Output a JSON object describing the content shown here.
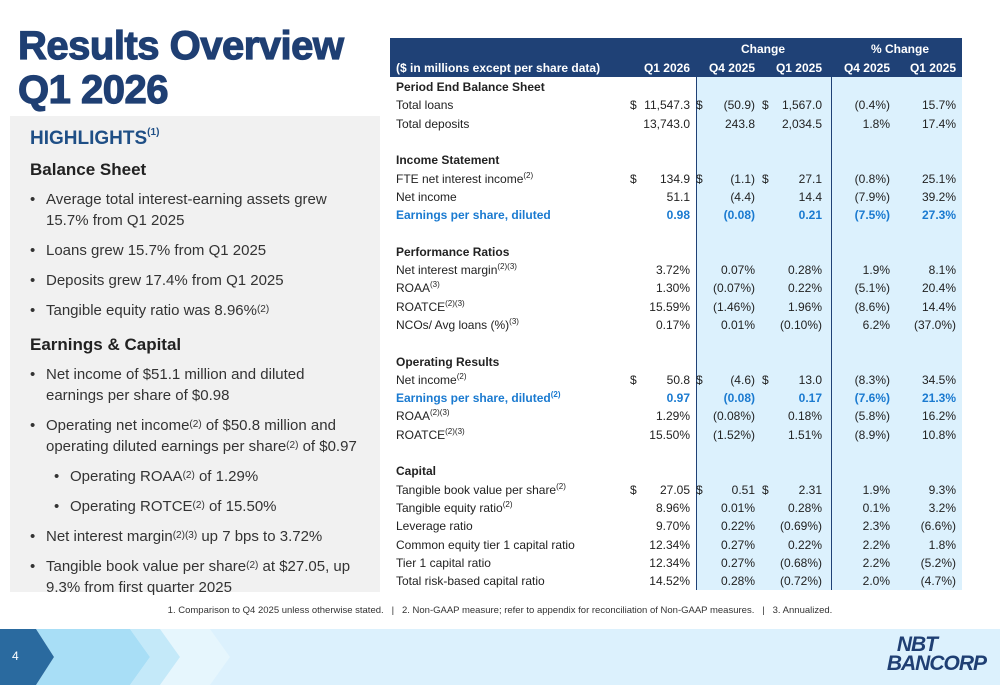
{
  "title": {
    "line1": "Results Overview",
    "line2": "Q1 2026"
  },
  "highlights": {
    "heading": "HIGHLIGHTS",
    "heading_sup": "(1)",
    "balance_heading": "Balance Sheet",
    "balance_items": [
      {
        "text": "Average total interest-earning assets grew 15.7% from Q1 2025"
      },
      {
        "text": "Loans grew 15.7% from Q1 2025"
      },
      {
        "text": "Deposits grew 17.4% from Q1 2025"
      },
      {
        "text": "Tangible equity ratio was 8.96%",
        "sup": "(2)"
      }
    ],
    "earnings_heading": "Earnings & Capital",
    "earnings_items": [
      {
        "parts": [
          "Net income of $51.1 million and diluted earnings per share of $0.98"
        ]
      },
      {
        "parts": [
          "Operating net income",
          "(2)",
          " of $50.8 million and operating diluted earnings per share",
          "(2)",
          " of $0.97"
        ]
      },
      {
        "parts": [
          "Operating ROAA",
          "(2)",
          " of 1.29%"
        ],
        "sub": true
      },
      {
        "parts": [
          "Operating ROTCE",
          "(2)",
          " of 15.50%"
        ],
        "sub": true
      },
      {
        "parts": [
          "Net interest margin",
          "(2)(3)",
          " up 7 bps to 3.72%"
        ]
      },
      {
        "parts": [
          "Tangible book value per share",
          "(2)",
          " at $27.05, up 9.3% from first quarter 2025"
        ]
      }
    ]
  },
  "table": {
    "header": {
      "units": "($ in millions except per share data)",
      "change": "Change",
      "pct_change": "% Change",
      "q1_2026": "Q1 2026",
      "chg_q4": "Q4 2025",
      "chg_q1": "Q1 2025",
      "pct_q4": "Q4 2025",
      "pct_q1": "Q1 2025"
    },
    "rows": [
      {
        "label": "Period End Balance Sheet",
        "type": "section"
      },
      {
        "label": "Total loans",
        "d": true,
        "v": [
          "11,547.3",
          "(50.9)",
          "1,567.0",
          "(0.4%)",
          "15.7%"
        ]
      },
      {
        "label": "Total deposits",
        "v": [
          "13,743.0",
          "243.8",
          "2,034.5",
          "1.8%",
          "17.4%"
        ]
      },
      {
        "type": "blank"
      },
      {
        "label": "Income Statement",
        "type": "section"
      },
      {
        "label": "FTE net interest income",
        "sup": "(2)",
        "d": true,
        "v": [
          "134.9",
          "(1.1)",
          "27.1",
          "(0.8%)",
          "25.1%"
        ]
      },
      {
        "label": "Net income",
        "v": [
          "51.1",
          "(4.4)",
          "14.4",
          "(7.9%)",
          "39.2%"
        ]
      },
      {
        "label": "Earnings per share, diluted",
        "type": "blue",
        "v": [
          "0.98",
          "(0.08)",
          "0.21",
          "(7.5%)",
          "27.3%"
        ]
      },
      {
        "type": "blank"
      },
      {
        "label": "Performance Ratios",
        "type": "section"
      },
      {
        "label": "Net interest margin",
        "sup": "(2)(3)",
        "v": [
          "3.72%",
          "0.07%",
          "0.28%",
          "1.9%",
          "8.1%"
        ]
      },
      {
        "label": "ROAA",
        "sup": "(3)",
        "v": [
          "1.30%",
          "(0.07%)",
          "0.22%",
          "(5.1%)",
          "20.4%"
        ]
      },
      {
        "label": "ROATCE",
        "sup": "(2)(3)",
        "v": [
          "15.59%",
          "(1.46%)",
          "1.96%",
          "(8.6%)",
          "14.4%"
        ]
      },
      {
        "label": "NCOs/ Avg loans (%)",
        "sup": "(3)",
        "v": [
          "0.17%",
          "0.01%",
          "(0.10%)",
          "6.2%",
          "(37.0%)"
        ]
      },
      {
        "type": "blank"
      },
      {
        "label": "Operating Results",
        "type": "section"
      },
      {
        "label": "Net income",
        "sup": "(2)",
        "d": true,
        "v": [
          "50.8",
          "(4.6)",
          "13.0",
          "(8.3%)",
          "34.5%"
        ]
      },
      {
        "label": "Earnings per share, diluted",
        "sup": "(2)",
        "type": "blue",
        "v": [
          "0.97",
          "(0.08)",
          "0.17",
          "(7.6%)",
          "21.3%"
        ]
      },
      {
        "label": "ROAA",
        "sup": "(2)(3)",
        "v": [
          "1.29%",
          "(0.08%)",
          "0.18%",
          "(5.8%)",
          "16.2%"
        ]
      },
      {
        "label": "ROATCE",
        "sup": "(2)(3)",
        "v": [
          "15.50%",
          "(1.52%)",
          "1.51%",
          "(8.9%)",
          "10.8%"
        ]
      },
      {
        "type": "blank"
      },
      {
        "label": "Capital",
        "type": "section"
      },
      {
        "label": "Tangible book value per share",
        "sup": "(2)",
        "d": true,
        "v": [
          "27.05",
          "0.51",
          "2.31",
          "1.9%",
          "9.3%"
        ]
      },
      {
        "label": "Tangible equity ratio",
        "sup": "(2)",
        "v": [
          "8.96%",
          "0.01%",
          "0.28%",
          "0.1%",
          "3.2%"
        ]
      },
      {
        "label": "Leverage ratio",
        "v": [
          "9.70%",
          "0.22%",
          "(0.69%)",
          "2.3%",
          "(6.6%)"
        ]
      },
      {
        "label": "Common equity tier 1 capital ratio",
        "v": [
          "12.34%",
          "0.27%",
          "0.22%",
          "2.2%",
          "1.8%"
        ]
      },
      {
        "label": "Tier 1 capital ratio",
        "v": [
          "12.34%",
          "0.27%",
          "(0.68%)",
          "2.2%",
          "(5.2%)"
        ]
      },
      {
        "label": "Total risk-based capital ratio",
        "v": [
          "14.52%",
          "0.28%",
          "(0.72%)",
          "2.0%",
          "(4.7%)"
        ]
      }
    ],
    "currency": "$"
  },
  "footnote": "1. Comparison to Q4 2025 unless otherwise stated.   |   2. Non-GAAP measure; refer to appendix for reconciliation of Non-GAAP measures.   |   3. Annualized.",
  "page_number": "4",
  "logo": {
    "line1": "NBT",
    "line2": "BANCORP"
  },
  "colors": {
    "navy": "#1f4176",
    "accent_blue": "#1a7ad0",
    "shade": "#dcf1fd"
  }
}
